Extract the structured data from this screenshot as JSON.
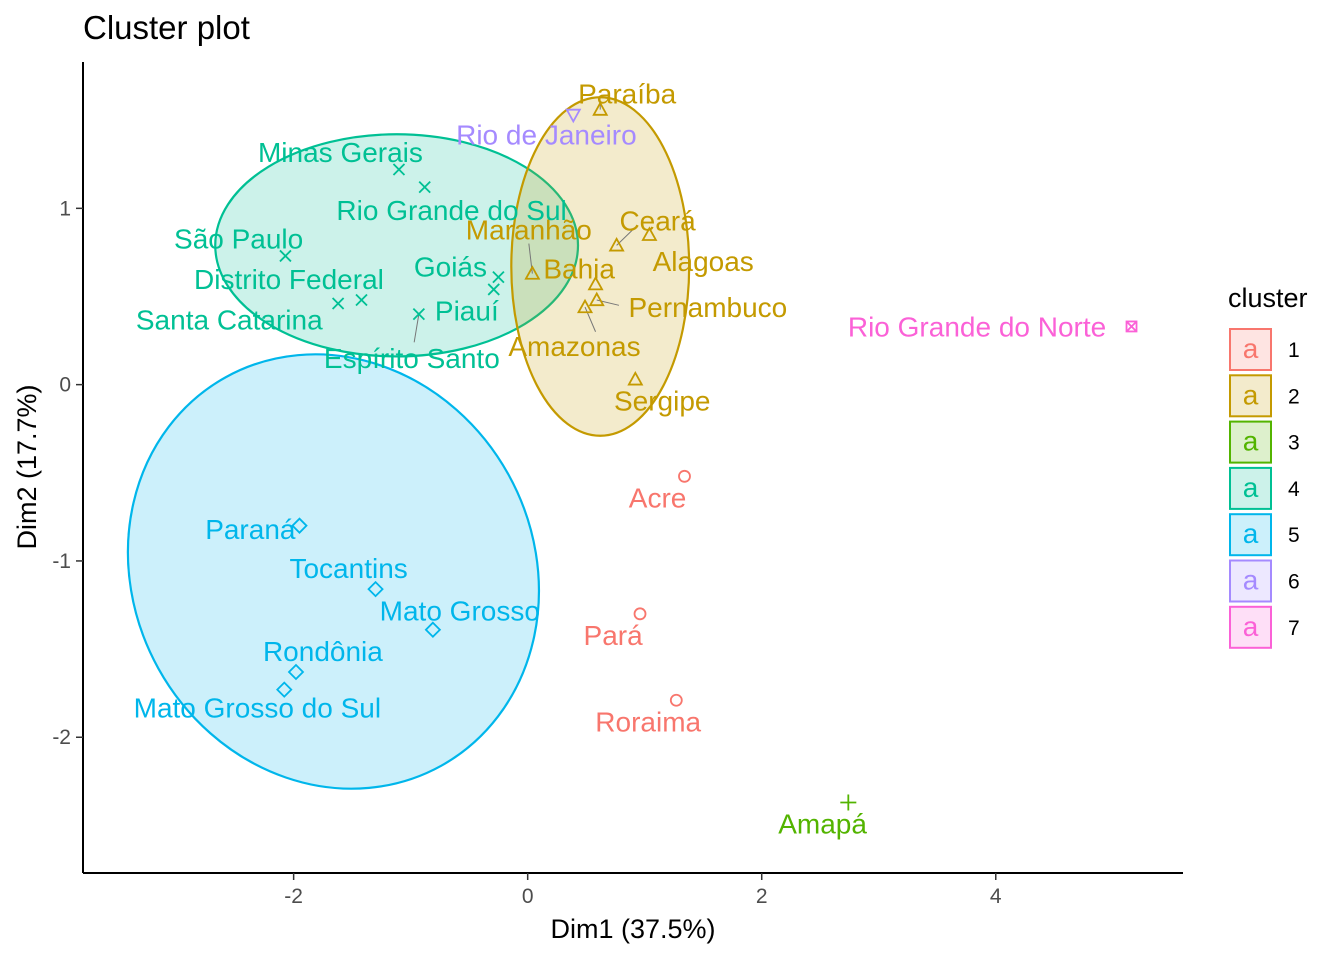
{
  "chart_data": {
    "type": "scatter",
    "title": "Cluster plot",
    "xlabel": "Dim1 (37.5%)",
    "ylabel": "Dim2 (17.7%)",
    "xlim": [
      -3.8,
      5.6
    ],
    "ylim": [
      -2.77,
      1.83
    ],
    "xticks": [
      -2,
      0,
      2,
      4
    ],
    "xtick_labels": [
      "-2",
      "0",
      "2",
      "4"
    ],
    "yticks": [
      1,
      0,
      -1,
      -2
    ],
    "ytick_labels": [
      "1",
      "0",
      "-1",
      "-2"
    ],
    "grid": false,
    "legend": {
      "title": "cluster",
      "position": "right",
      "entries": [
        "1",
        "2",
        "3",
        "4",
        "5",
        "6",
        "7"
      ],
      "key_glyph": "a"
    },
    "clusters": [
      {
        "id": "1",
        "color": "#F8766D",
        "shape": "circle",
        "ellipse": false
      },
      {
        "id": "2",
        "color": "#C49A00",
        "shape": "triangle",
        "ellipse": true
      },
      {
        "id": "3",
        "color": "#53B400",
        "shape": "plus",
        "ellipse": false
      },
      {
        "id": "4",
        "color": "#00C094",
        "shape": "cross",
        "ellipse": true
      },
      {
        "id": "5",
        "color": "#00B6EB",
        "shape": "diamond",
        "ellipse": true
      },
      {
        "id": "6",
        "color": "#A58AFF",
        "shape": "triangle-down",
        "ellipse": false
      },
      {
        "id": "7",
        "color": "#FB61D7",
        "shape": "square-cross",
        "ellipse": false
      }
    ],
    "points": [
      {
        "label": "Acre",
        "cluster": "1",
        "x": 1.34,
        "y": -0.52,
        "lx": 1.11,
        "ly": -0.64
      },
      {
        "label": "Pará",
        "cluster": "1",
        "x": 0.96,
        "y": -1.3,
        "lx": 0.73,
        "ly": -1.42
      },
      {
        "label": "Roraima",
        "cluster": "1",
        "x": 1.27,
        "y": -1.79,
        "lx": 1.03,
        "ly": -1.91
      },
      {
        "label": "Paraíba",
        "cluster": "2",
        "x": 0.62,
        "y": 1.56,
        "lx": 0.85,
        "ly": 1.65
      },
      {
        "label": "Ceará",
        "cluster": "2",
        "x": 0.76,
        "y": 0.79,
        "lx": 1.11,
        "ly": 0.93
      },
      {
        "label": "Alagoas",
        "cluster": "2",
        "x": 1.04,
        "y": 0.85,
        "lx": 1.5,
        "ly": 0.7
      },
      {
        "label": "Maranhão",
        "cluster": "2",
        "x": 0.04,
        "y": 0.63,
        "lx": 0.01,
        "ly": 0.88
      },
      {
        "label": "Bahia",
        "cluster": "2",
        "x": 0.58,
        "y": 0.57,
        "lx": 0.44,
        "ly": 0.66
      },
      {
        "label": "Pernambuco",
        "cluster": "2",
        "x": 0.59,
        "y": 0.48,
        "lx": 1.54,
        "ly": 0.44
      },
      {
        "label": "Amazonas",
        "cluster": "2",
        "x": 0.49,
        "y": 0.44,
        "lx": 0.4,
        "ly": 0.22
      },
      {
        "label": "Sergipe",
        "cluster": "2",
        "x": 0.92,
        "y": 0.03,
        "lx": 1.15,
        "ly": -0.09
      },
      {
        "label": "Amapá",
        "cluster": "3",
        "x": 2.74,
        "y": -2.37,
        "lx": 2.52,
        "ly": -2.49
      },
      {
        "label": "Minas Gerais",
        "cluster": "4",
        "x": -1.1,
        "y": 1.22,
        "lx": -1.6,
        "ly": 1.32
      },
      {
        "label": "Rio Grande do Sul",
        "cluster": "4",
        "x": -0.88,
        "y": 1.12,
        "lx": -0.65,
        "ly": 0.99
      },
      {
        "label": "São Paulo",
        "cluster": "4",
        "x": -2.07,
        "y": 0.73,
        "lx": -2.47,
        "ly": 0.83
      },
      {
        "label": "Goiás",
        "cluster": "4",
        "x": -0.25,
        "y": 0.61,
        "lx": -0.66,
        "ly": 0.67
      },
      {
        "label": "Distrito Federal",
        "cluster": "4",
        "x": -1.42,
        "y": 0.48,
        "lx": -2.04,
        "ly": 0.6
      },
      {
        "label": "Santa Catarina",
        "cluster": "4",
        "x": -1.62,
        "y": 0.46,
        "lx": -2.55,
        "ly": 0.37
      },
      {
        "label": "Piauí",
        "cluster": "4",
        "x": -0.29,
        "y": 0.54,
        "lx": -0.52,
        "ly": 0.42
      },
      {
        "label": "Espírito Santo",
        "cluster": "4",
        "x": -0.93,
        "y": 0.4,
        "lx": -0.99,
        "ly": 0.15
      },
      {
        "label": "Paraná",
        "cluster": "5",
        "x": -1.95,
        "y": -0.8,
        "lx": -2.37,
        "ly": -0.82
      },
      {
        "label": "Tocantins",
        "cluster": "5",
        "x": -1.3,
        "y": -1.16,
        "lx": -1.53,
        "ly": -1.04
      },
      {
        "label": "Mato Grosso",
        "cluster": "5",
        "x": -0.81,
        "y": -1.39,
        "lx": -0.58,
        "ly": -1.28
      },
      {
        "label": "Rondônia",
        "cluster": "5",
        "x": -1.98,
        "y": -1.63,
        "lx": -1.75,
        "ly": -1.51
      },
      {
        "label": "Mato Grosso do Sul",
        "cluster": "5",
        "x": -2.08,
        "y": -1.73,
        "lx": -2.31,
        "ly": -1.83
      },
      {
        "label": "Rio de Janeiro",
        "cluster": "6",
        "x": 0.39,
        "y": 1.53,
        "lx": 0.16,
        "ly": 1.42
      },
      {
        "label": "Rio Grande do Norte",
        "cluster": "7",
        "x": 5.16,
        "y": 0.33,
        "lx": 3.84,
        "ly": 0.33
      }
    ],
    "ellipses": [
      {
        "cluster": "4",
        "cx": -1.12,
        "cy": 0.79,
        "rx": 1.55,
        "ry": 0.63
      },
      {
        "cluster": "2",
        "cx": 0.62,
        "cy": 0.67,
        "rx": 0.76,
        "ry": 0.96
      },
      {
        "cluster": "5",
        "cx": -1.66,
        "cy": -1.06,
        "rx": 1.71,
        "ry": 1.26,
        "rotate_deg": -29
      }
    ],
    "leader_lines": [
      {
        "from": [
          0.62,
          1.56
        ],
        "to": [
          0.62,
          1.6
        ]
      },
      {
        "from": [
          0.04,
          0.63
        ],
        "to": [
          0.01,
          0.8
        ]
      },
      {
        "from": [
          0.76,
          0.79
        ],
        "to": [
          0.9,
          0.88
        ]
      },
      {
        "from": [
          0.59,
          0.48
        ],
        "to": [
          0.78,
          0.45
        ]
      },
      {
        "from": [
          0.49,
          0.44
        ],
        "to": [
          0.58,
          0.3
        ]
      },
      {
        "from": [
          -0.93,
          0.4
        ],
        "to": [
          -0.97,
          0.24
        ]
      }
    ]
  }
}
